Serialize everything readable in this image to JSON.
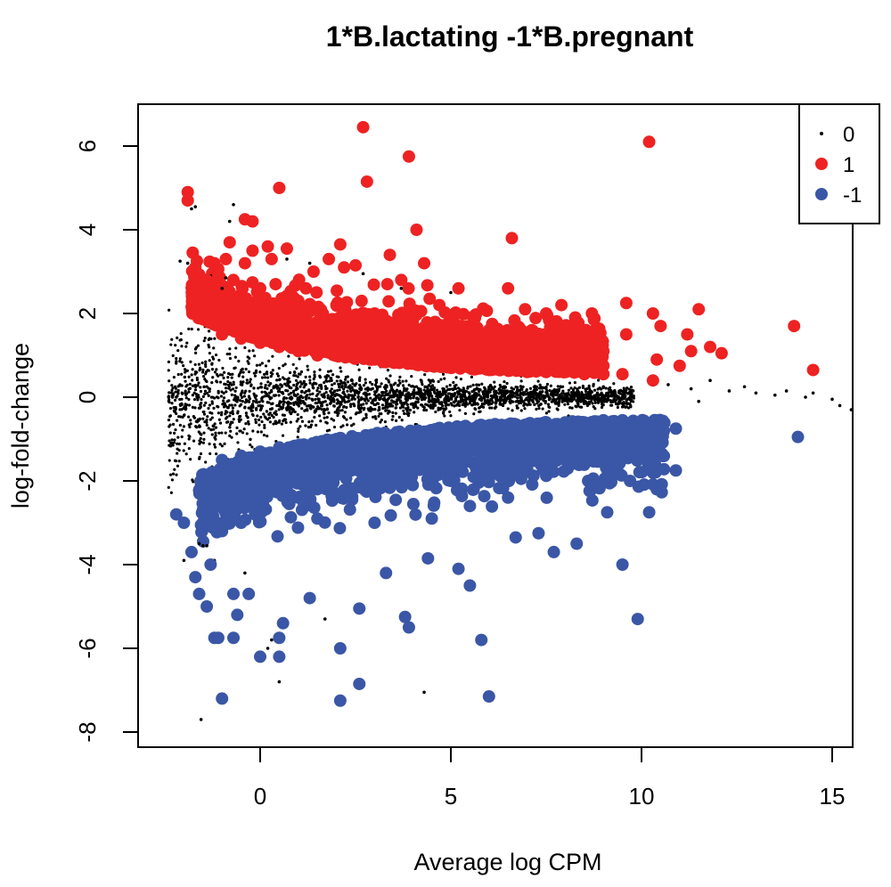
{
  "chart_data": {
    "type": "scatter",
    "title": "1*B.lactating -1*B.pregnant",
    "xlabel": "Average log CPM",
    "ylabel": "log-fold-change",
    "xlim": [
      -3,
      16
    ],
    "ylim": [
      -8.3,
      7
    ],
    "x_ticks": [
      0,
      5,
      10,
      15
    ],
    "y_ticks": [
      -8,
      -6,
      -4,
      -2,
      0,
      2,
      4,
      6
    ],
    "legend": {
      "position": "top-right",
      "entries": [
        {
          "label": "0",
          "color": "#000000"
        },
        {
          "label": "1",
          "color": "#ee2222"
        },
        {
          "label": "-1",
          "color": "#3a56a6"
        }
      ]
    },
    "series": [
      {
        "name": "0",
        "color": "#000000",
        "marker": "small-dot",
        "points": [
          [
            -2.4,
            0.0
          ],
          [
            -2.3,
            0.0
          ],
          [
            -2.2,
            0.0
          ],
          [
            -2.1,
            3.25
          ],
          [
            -2.0,
            -3.9
          ],
          [
            -1.9,
            3.2
          ],
          [
            -1.8,
            4.5
          ],
          [
            -1.7,
            4.55
          ],
          [
            -1.6,
            -3.5
          ],
          [
            -1.55,
            -7.7
          ],
          [
            -1.5,
            -3.55
          ],
          [
            -1.4,
            -3.55
          ],
          [
            -1.3,
            2.9
          ],
          [
            -1.2,
            -3.9
          ],
          [
            -1.0,
            2.6
          ],
          [
            -0.9,
            2.85
          ],
          [
            -0.8,
            4.2
          ],
          [
            -0.7,
            4.6
          ],
          [
            -0.4,
            -4.2
          ],
          [
            0.2,
            -6.0
          ],
          [
            0.3,
            -5.8
          ],
          [
            0.5,
            -6.8
          ],
          [
            0.7,
            3.3
          ],
          [
            1.3,
            3.2
          ],
          [
            1.7,
            -5.3
          ],
          [
            2.7,
            2.95
          ],
          [
            3.7,
            2.6
          ],
          [
            4.3,
            -7.05
          ],
          [
            5.0,
            2.5
          ],
          [
            8.0,
            -0.7
          ],
          [
            9.0,
            0.25
          ],
          [
            10.7,
            0.3
          ],
          [
            11.3,
            0.2
          ],
          [
            11.8,
            0.4
          ],
          [
            12.3,
            0.15
          ],
          [
            13.0,
            0.1
          ],
          [
            13.5,
            0.05
          ],
          [
            13.8,
            0.15
          ],
          [
            14.3,
            0.0
          ],
          [
            15.0,
            -0.05
          ],
          [
            15.2,
            -0.2
          ],
          [
            15.5,
            -0.3
          ],
          [
            14.5,
            0.1
          ],
          [
            12.7,
            0.25
          ],
          [
            11.5,
            -0.1
          ],
          [
            10.3,
            0.35
          ]
        ]
      },
      {
        "name": "1",
        "color": "#ee2222",
        "marker": "filled-circle",
        "points": [
          [
            -1.9,
            4.9
          ],
          [
            -1.9,
            4.7
          ],
          [
            -1.7,
            3.1
          ],
          [
            -1.4,
            2.8
          ],
          [
            -1.3,
            2.5
          ],
          [
            -1.2,
            3.2
          ],
          [
            -0.8,
            3.7
          ],
          [
            -0.9,
            3.3
          ],
          [
            -1.0,
            2.3
          ],
          [
            -0.4,
            4.25
          ],
          [
            -0.4,
            3.2
          ],
          [
            -0.2,
            3.5
          ],
          [
            0.2,
            3.6
          ],
          [
            0.5,
            5.0
          ],
          [
            0.3,
            3.3
          ],
          [
            0.7,
            3.55
          ],
          [
            -0.2,
            4.2
          ],
          [
            1.2,
            2.6
          ],
          [
            1.4,
            3.0
          ],
          [
            1.8,
            3.3
          ],
          [
            2.1,
            3.65
          ],
          [
            2.2,
            3.1
          ],
          [
            2.5,
            3.15
          ],
          [
            2.7,
            6.45
          ],
          [
            2.8,
            5.15
          ],
          [
            3.4,
            3.4
          ],
          [
            3.7,
            2.8
          ],
          [
            3.9,
            5.75
          ],
          [
            4.1,
            4.0
          ],
          [
            4.3,
            3.2
          ],
          [
            4.7,
            2.2
          ],
          [
            5.2,
            2.6
          ],
          [
            6.5,
            2.6
          ],
          [
            6.6,
            3.8
          ],
          [
            7.5,
            2.0
          ],
          [
            7.9,
            2.2
          ],
          [
            8.7,
            2.0
          ],
          [
            9.6,
            1.5
          ],
          [
            9.6,
            2.25
          ],
          [
            10.2,
            6.1
          ],
          [
            10.3,
            2.0
          ],
          [
            10.5,
            1.7
          ],
          [
            10.4,
            0.9
          ],
          [
            11.0,
            0.75
          ],
          [
            11.2,
            1.5
          ],
          [
            11.3,
            1.1
          ],
          [
            11.5,
            2.1
          ],
          [
            11.8,
            1.2
          ],
          [
            12.1,
            1.05
          ],
          [
            14.0,
            1.7
          ],
          [
            14.5,
            0.65
          ],
          [
            10.3,
            0.4
          ],
          [
            -1.0,
            1.5
          ],
          [
            -0.5,
            1.4
          ],
          [
            0.0,
            1.3
          ],
          [
            0.5,
            1.2
          ],
          [
            1.0,
            1.1
          ],
          [
            1.5,
            1.0
          ],
          [
            2.0,
            1.0
          ],
          [
            2.5,
            0.95
          ],
          [
            3.0,
            0.9
          ],
          [
            3.5,
            0.85
          ],
          [
            4.0,
            0.8
          ],
          [
            4.5,
            0.75
          ],
          [
            5.0,
            0.7
          ],
          [
            5.5,
            0.7
          ],
          [
            6.0,
            0.65
          ],
          [
            6.5,
            0.65
          ],
          [
            7.0,
            0.6
          ],
          [
            7.5,
            0.6
          ],
          [
            8.0,
            0.6
          ],
          [
            8.5,
            0.55
          ],
          [
            9.0,
            0.55
          ],
          [
            9.5,
            0.55
          ],
          [
            -0.5,
            2.2
          ],
          [
            0.0,
            2.0
          ],
          [
            0.5,
            1.9
          ],
          [
            1.0,
            1.8
          ],
          [
            1.5,
            1.7
          ],
          [
            2.0,
            1.6
          ],
          [
            2.5,
            1.5
          ],
          [
            3.0,
            1.45
          ],
          [
            3.5,
            1.4
          ],
          [
            4.0,
            1.3
          ],
          [
            4.5,
            1.25
          ],
          [
            5.0,
            1.2
          ],
          [
            5.5,
            1.15
          ],
          [
            6.0,
            1.1
          ],
          [
            6.5,
            1.0
          ],
          [
            7.0,
            0.95
          ],
          [
            7.5,
            0.9
          ],
          [
            8.0,
            0.85
          ],
          [
            8.5,
            0.8
          ],
          [
            9.0,
            0.75
          ],
          [
            0.0,
            2.6
          ],
          [
            1.0,
            2.3
          ],
          [
            2.0,
            2.2
          ],
          [
            3.0,
            2.0
          ],
          [
            4.0,
            1.8
          ],
          [
            5.0,
            1.7
          ],
          [
            6.0,
            1.6
          ],
          [
            7.0,
            1.5
          ],
          [
            8.0,
            1.3
          ],
          [
            9.0,
            1.1
          ]
        ]
      },
      {
        "name": "-1",
        "color": "#3a56a6",
        "marker": "filled-circle",
        "points": [
          [
            -2.2,
            -2.8
          ],
          [
            -2.0,
            -3.0
          ],
          [
            -1.8,
            -3.7
          ],
          [
            -1.7,
            -4.3
          ],
          [
            -1.6,
            -4.7
          ],
          [
            -1.5,
            -2.2
          ],
          [
            -1.3,
            -4.0
          ],
          [
            -1.4,
            -5.0
          ],
          [
            -1.2,
            -5.75
          ],
          [
            -1.1,
            -5.75
          ],
          [
            -1.0,
            -7.2
          ],
          [
            -0.7,
            -4.7
          ],
          [
            -0.7,
            -5.75
          ],
          [
            -0.6,
            -5.2
          ],
          [
            -0.3,
            -4.7
          ],
          [
            0.0,
            -6.2
          ],
          [
            0.5,
            -6.2
          ],
          [
            0.5,
            -5.75
          ],
          [
            0.6,
            -5.4
          ],
          [
            1.3,
            -4.8
          ],
          [
            2.1,
            -6.0
          ],
          [
            2.1,
            -7.25
          ],
          [
            2.6,
            -6.85
          ],
          [
            2.6,
            -5.05
          ],
          [
            3.3,
            -4.2
          ],
          [
            3.8,
            -5.25
          ],
          [
            3.9,
            -5.5
          ],
          [
            4.4,
            -3.85
          ],
          [
            5.2,
            -4.1
          ],
          [
            5.5,
            -4.5
          ],
          [
            5.8,
            -5.8
          ],
          [
            6.0,
            -7.15
          ],
          [
            6.7,
            -3.35
          ],
          [
            7.3,
            -3.25
          ],
          [
            7.7,
            -3.7
          ],
          [
            8.3,
            -3.5
          ],
          [
            9.1,
            -2.75
          ],
          [
            9.5,
            -4.0
          ],
          [
            9.7,
            -2.0
          ],
          [
            9.9,
            -5.3
          ],
          [
            10.2,
            -2.75
          ],
          [
            10.4,
            -2.2
          ],
          [
            10.9,
            -1.75
          ],
          [
            10.9,
            -0.75
          ],
          [
            14.1,
            -0.95
          ],
          [
            8.6,
            -2.0
          ],
          [
            -1.0,
            -1.5
          ],
          [
            -0.5,
            -1.4
          ],
          [
            0.0,
            -1.3
          ],
          [
            0.5,
            -1.2
          ],
          [
            1.0,
            -1.15
          ],
          [
            1.5,
            -1.1
          ],
          [
            2.0,
            -1.0
          ],
          [
            2.5,
            -1.0
          ],
          [
            3.0,
            -0.95
          ],
          [
            3.5,
            -0.9
          ],
          [
            4.0,
            -0.85
          ],
          [
            4.5,
            -0.8
          ],
          [
            5.0,
            -0.8
          ],
          [
            5.5,
            -0.75
          ],
          [
            6.0,
            -0.7
          ],
          [
            6.5,
            -0.7
          ],
          [
            7.0,
            -0.65
          ],
          [
            7.5,
            -0.6
          ],
          [
            8.0,
            -0.6
          ],
          [
            8.5,
            -0.6
          ],
          [
            9.0,
            -0.55
          ],
          [
            9.5,
            -0.55
          ],
          [
            -0.5,
            -2.1
          ],
          [
            0.0,
            -2.0
          ],
          [
            0.5,
            -1.9
          ],
          [
            1.0,
            -1.85
          ],
          [
            1.5,
            -1.8
          ],
          [
            2.0,
            -1.7
          ],
          [
            2.5,
            -1.6
          ],
          [
            3.0,
            -1.55
          ],
          [
            3.5,
            -1.5
          ],
          [
            4.0,
            -1.45
          ],
          [
            4.5,
            -1.4
          ],
          [
            5.0,
            -1.35
          ],
          [
            5.5,
            -1.3
          ],
          [
            6.0,
            -1.2
          ],
          [
            6.5,
            -1.15
          ],
          [
            7.0,
            -1.1
          ],
          [
            7.5,
            -1.0
          ],
          [
            8.0,
            -0.95
          ],
          [
            8.5,
            -0.9
          ],
          [
            9.0,
            -0.85
          ],
          [
            0.0,
            -2.6
          ],
          [
            1.0,
            -2.4
          ],
          [
            2.0,
            -2.3
          ],
          [
            3.0,
            -2.2
          ],
          [
            4.0,
            -2.1
          ],
          [
            5.0,
            -2.0
          ],
          [
            6.0,
            -1.9
          ],
          [
            7.0,
            -1.7
          ],
          [
            8.0,
            -1.5
          ],
          [
            9.0,
            -1.3
          ],
          [
            -1.5,
            -3.0
          ],
          [
            -1.0,
            -3.2
          ],
          [
            -0.5,
            -3.0
          ],
          [
            1.5,
            -2.9
          ],
          [
            3.0,
            -3.0
          ],
          [
            4.5,
            -2.9
          ],
          [
            5.5,
            -2.6
          ],
          [
            6.5,
            -2.4
          ]
        ]
      }
    ]
  }
}
